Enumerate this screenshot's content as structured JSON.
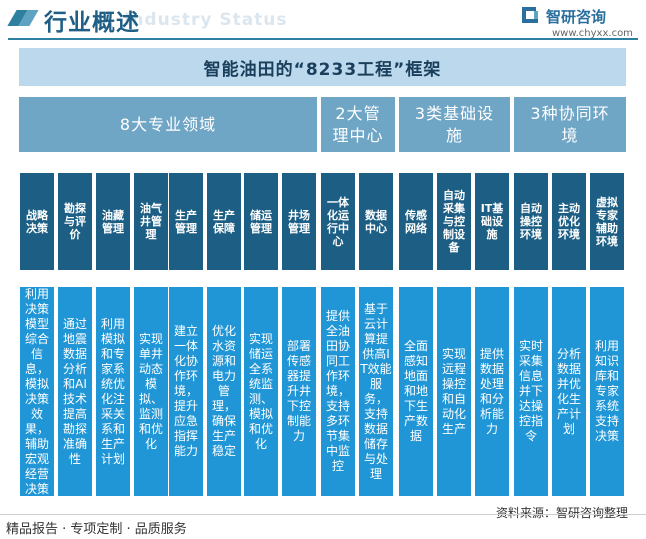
{
  "header": {
    "title": "行业概述",
    "watermark": "Industry Status",
    "brand_name": "智研咨询",
    "brand_url": "www.chyxx.com"
  },
  "main_title": "智能油田的“8233工程”框架",
  "categories": [
    {
      "label": "8大专业领域"
    },
    {
      "label": "2大管理中心"
    },
    {
      "label": "3类基础设施"
    },
    {
      "label": "3种协同环境"
    }
  ],
  "items": [
    {
      "label": "战略决策",
      "desc": "利用决策模型综合信息，模拟决策效果，辅助宏观经营决策"
    },
    {
      "label": "勘探与评价",
      "desc": "通过地震数据分析和AI技术提高勘探准确性"
    },
    {
      "label": "油藏管理",
      "desc": "利用模拟和专家系统优化注采关系和生产计划"
    },
    {
      "label": "油气井管理",
      "desc": "实现单井动态模拟、监测和优化"
    },
    {
      "label": "生产管理",
      "desc": "建立一体化协作环境，提升应急指挥能力"
    },
    {
      "label": "生产保障",
      "desc": "优化水资源和电力管理，确保生产稳定"
    },
    {
      "label": "储运管理",
      "desc": "实现储运全系统监测、模拟和优化"
    },
    {
      "label": "井场管理",
      "desc": "部署传感器提升井下控制能力"
    },
    {
      "label": "一体化运行中心",
      "desc": "提供全油田协同工作环境，支持多环节集中监控"
    },
    {
      "label": "数据中心",
      "desc": "基于云计算提供高IT效能服务，支持数据储存与处理"
    },
    {
      "label": "传感网络",
      "desc": "全面感知地面和地下生产数据"
    },
    {
      "label": "自动采集与控制设备",
      "desc": "实现远程操控和自动化生产"
    },
    {
      "label": "IT基础设施",
      "desc": "提供数据处理和分析能力"
    },
    {
      "label": "自动操控环境",
      "desc": "实时采集信息并下达操控指令"
    },
    {
      "label": "主动优化环境",
      "desc": "分析数据并优化生产计划"
    },
    {
      "label": "虚拟专家辅助环境",
      "desc": "利用知识库和专家系统支持决策"
    }
  ],
  "footer": {
    "source": "资料来源：智研咨询整理",
    "tagline": "精品报告 · 专项定制 · 品质服务"
  }
}
